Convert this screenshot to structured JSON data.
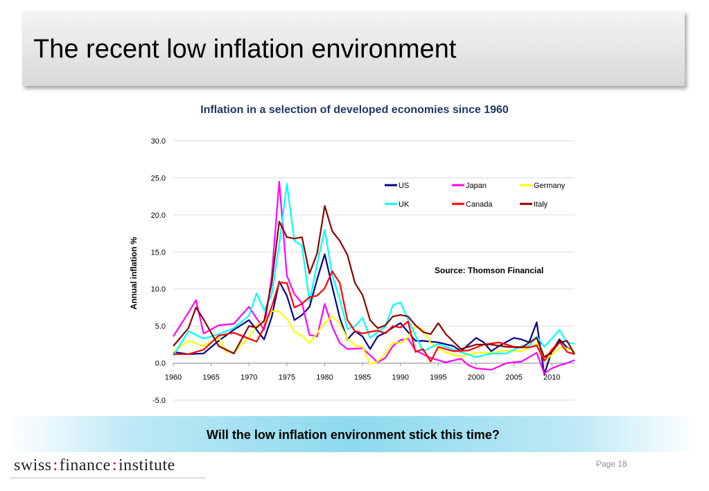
{
  "slide": {
    "title": "The recent low inflation environment",
    "question": "Will the low inflation environment stick this time?",
    "page": "Page 18",
    "logo": {
      "part1": "swiss",
      "part2": "finance",
      "part3": "institute",
      "separator": ":"
    }
  },
  "chart_data": {
    "type": "line",
    "title": "Inflation in a selection of developed economies since 1960",
    "ylabel": "Annual inflation %",
    "xlabel": "",
    "source": "Source:  Thomson Financial",
    "xlim": [
      1960,
      2013
    ],
    "ylim": [
      -5,
      30
    ],
    "yticks": [
      -5,
      0,
      5,
      10,
      15,
      20,
      25,
      30
    ],
    "ytick_labels": [
      "-5.0",
      "0.0",
      "5.0",
      "10.0",
      "15.0",
      "20.0",
      "25.0",
      "30.0"
    ],
    "xticks": [
      1960,
      1965,
      1970,
      1975,
      1980,
      1985,
      1990,
      1995,
      2000,
      2005,
      2010
    ],
    "xtick_labels": [
      "1960",
      "1965",
      "1970",
      "1975",
      "1980",
      "1985",
      "1990",
      "1995",
      "2000",
      "2005",
      "2010"
    ],
    "grid": true,
    "legend_position": "top-right",
    "series": [
      {
        "name": "US",
        "color": "#00008b",
        "x": [
          1960,
          1962,
          1964,
          1966,
          1968,
          1970,
          1972,
          1973,
          1974,
          1975,
          1976,
          1977,
          1978,
          1979,
          1980,
          1981,
          1982,
          1983,
          1984,
          1985,
          1986,
          1987,
          1988,
          1989,
          1990,
          1991,
          1992,
          1993,
          1995,
          1997,
          1998,
          2000,
          2001,
          2002,
          2003,
          2005,
          2006,
          2007,
          2008,
          2009,
          2010,
          2011,
          2012,
          2013
        ],
        "y": [
          1.5,
          1.2,
          1.3,
          3.0,
          4.5,
          5.8,
          3.2,
          6.2,
          11.0,
          9.1,
          5.8,
          6.5,
          7.6,
          11.3,
          14.7,
          10.3,
          6.1,
          3.2,
          4.3,
          3.6,
          1.9,
          3.6,
          4.1,
          4.8,
          5.4,
          4.2,
          3.0,
          3.0,
          2.8,
          2.3,
          1.6,
          3.4,
          2.8,
          1.6,
          2.3,
          3.4,
          3.2,
          2.8,
          5.5,
          -1.5,
          1.6,
          3.2,
          2.1,
          1.5
        ]
      },
      {
        "name": "Japan",
        "color": "#ff00ff",
        "x": [
          1960,
          1962,
          1963,
          1964,
          1966,
          1968,
          1970,
          1972,
          1973,
          1974,
          1975,
          1976,
          1977,
          1978,
          1979,
          1980,
          1981,
          1982,
          1983,
          1985,
          1987,
          1988,
          1989,
          1990,
          1991,
          1992,
          1994,
          1996,
          1998,
          1999,
          2000,
          2002,
          2004,
          2006,
          2008,
          2009,
          2010,
          2011,
          2012,
          2013
        ],
        "y": [
          3.6,
          6.8,
          8.5,
          4.0,
          5.1,
          5.3,
          7.6,
          4.5,
          11.7,
          24.5,
          11.8,
          9.3,
          8.1,
          3.8,
          3.6,
          8.0,
          4.9,
          2.7,
          1.9,
          2.0,
          0.1,
          0.7,
          2.3,
          3.1,
          3.3,
          1.7,
          0.7,
          0.1,
          0.6,
          -0.3,
          -0.7,
          -0.9,
          0.0,
          0.2,
          1.4,
          -1.4,
          -0.7,
          -0.3,
          0.0,
          0.4
        ]
      },
      {
        "name": "Germany",
        "color": "#ffff00",
        "x": [
          1960,
          1962,
          1964,
          1966,
          1967,
          1968,
          1970,
          1971,
          1972,
          1973,
          1974,
          1975,
          1976,
          1977,
          1978,
          1979,
          1980,
          1981,
          1982,
          1983,
          1984,
          1985,
          1986,
          1987,
          1988,
          1989,
          1990,
          1991,
          1992,
          1993,
          1994,
          1996,
          1998,
          2000,
          2002,
          2004,
          2006,
          2008,
          2009,
          2010,
          2011,
          2012,
          2013
        ],
        "y": [
          1.5,
          3.0,
          2.3,
          3.5,
          1.5,
          1.5,
          3.4,
          5.2,
          5.5,
          7.0,
          7.0,
          6.0,
          4.2,
          3.7,
          2.7,
          4.1,
          5.4,
          6.3,
          5.3,
          3.3,
          2.4,
          2.2,
          -0.1,
          0.2,
          1.3,
          2.8,
          2.7,
          3.5,
          5.0,
          4.5,
          2.7,
          1.4,
          0.9,
          1.4,
          1.4,
          1.7,
          1.6,
          2.6,
          0.3,
          1.1,
          2.1,
          2.0,
          1.5
        ]
      },
      {
        "name": "UK",
        "color": "#00ffff",
        "x": [
          1960,
          1962,
          1964,
          1966,
          1968,
          1970,
          1971,
          1972,
          1973,
          1974,
          1975,
          1976,
          1977,
          1978,
          1979,
          1980,
          1981,
          1982,
          1983,
          1984,
          1985,
          1986,
          1987,
          1988,
          1989,
          1990,
          1991,
          1992,
          1993,
          1995,
          1997,
          2000,
          2002,
          2004,
          2006,
          2007,
          2008,
          2009,
          2010,
          2011,
          2012,
          2013
        ],
        "y": [
          1.0,
          4.3,
          3.3,
          3.9,
          4.7,
          6.4,
          9.4,
          7.1,
          9.2,
          16.0,
          24.2,
          16.5,
          15.8,
          8.3,
          13.4,
          18.0,
          11.9,
          8.6,
          4.6,
          5.0,
          6.1,
          3.4,
          4.2,
          4.9,
          7.8,
          8.2,
          5.9,
          3.7,
          1.6,
          2.6,
          1.8,
          0.8,
          1.3,
          1.3,
          2.3,
          2.3,
          3.6,
          2.2,
          3.3,
          4.5,
          2.8,
          2.6
        ]
      },
      {
        "name": "Canada",
        "color": "#ff0000",
        "x": [
          1960,
          1962,
          1964,
          1966,
          1968,
          1970,
          1971,
          1972,
          1973,
          1974,
          1975,
          1976,
          1977,
          1978,
          1979,
          1980,
          1981,
          1982,
          1983,
          1984,
          1985,
          1986,
          1987,
          1988,
          1989,
          1990,
          1991,
          1992,
          1993,
          1994,
          1995,
          1997,
          1999,
          2001,
          2003,
          2005,
          2007,
          2008,
          2009,
          2010,
          2011,
          2012,
          2013
        ],
        "y": [
          1.2,
          1.2,
          1.8,
          3.7,
          4.1,
          3.3,
          2.9,
          4.8,
          7.6,
          10.9,
          10.8,
          7.5,
          8.0,
          8.9,
          9.1,
          10.1,
          12.4,
          10.8,
          5.8,
          4.3,
          4.0,
          4.2,
          4.4,
          4.0,
          5.0,
          4.8,
          5.6,
          1.5,
          1.9,
          0.2,
          2.2,
          1.6,
          1.7,
          2.5,
          2.8,
          2.2,
          2.1,
          2.4,
          0.3,
          1.8,
          2.9,
          1.5,
          1.2
        ]
      },
      {
        "name": "Italy",
        "color": "#8b0000",
        "x": [
          1960,
          1962,
          1963,
          1964,
          1966,
          1968,
          1970,
          1971,
          1972,
          1973,
          1974,
          1975,
          1976,
          1977,
          1978,
          1979,
          1980,
          1981,
          1982,
          1983,
          1984,
          1985,
          1986,
          1987,
          1988,
          1989,
          1990,
          1991,
          1992,
          1993,
          1994,
          1995,
          1996,
          1998,
          2000,
          2002,
          2004,
          2006,
          2008,
          2009,
          2010,
          2011,
          2012,
          2013
        ],
        "y": [
          2.3,
          4.7,
          7.5,
          5.9,
          2.3,
          1.3,
          5.0,
          4.8,
          5.7,
          10.8,
          19.1,
          17.0,
          16.8,
          17.0,
          12.1,
          14.8,
          21.2,
          17.8,
          16.5,
          14.6,
          10.8,
          9.2,
          5.8,
          4.7,
          5.1,
          6.3,
          6.5,
          6.3,
          5.1,
          4.2,
          3.9,
          5.4,
          3.9,
          1.9,
          2.5,
          2.5,
          2.2,
          2.1,
          3.4,
          0.8,
          1.5,
          2.8,
          3.0,
          1.2
        ]
      }
    ]
  }
}
